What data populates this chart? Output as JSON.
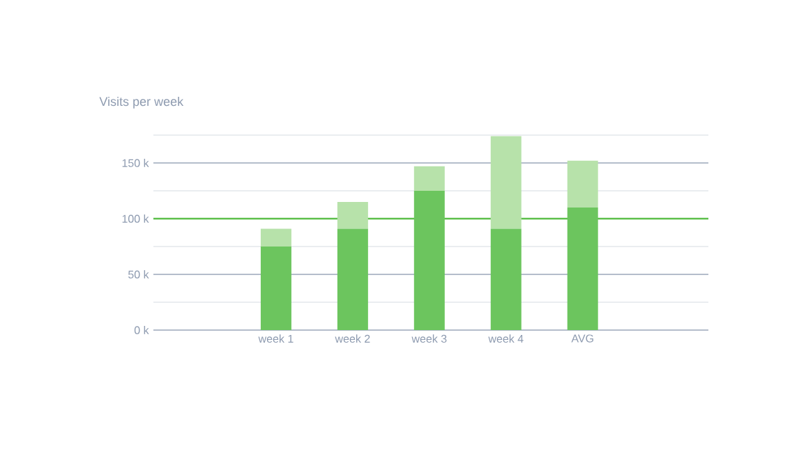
{
  "chart_data": {
    "type": "bar",
    "title": "Visits per week",
    "stacked": true,
    "categories": [
      "week 1",
      "week 2",
      "week 3",
      "week 4",
      "AVG"
    ],
    "series": [
      {
        "color": "#6cc55e",
        "values": [
          75,
          91,
          125,
          91,
          110
        ]
      },
      {
        "color": "#b7e2aa",
        "values": [
          16,
          24,
          22,
          83,
          42
        ]
      }
    ],
    "ylim": [
      0,
      175
    ],
    "yticks": [
      {
        "value": 0,
        "label": "0 k"
      },
      {
        "value": 25,
        "label": null
      },
      {
        "value": 50,
        "label": "50 k"
      },
      {
        "value": 75,
        "label": null
      },
      {
        "value": 100,
        "label": "100 k"
      },
      {
        "value": 125,
        "label": null
      },
      {
        "value": 150,
        "label": "150 k"
      },
      {
        "value": 175,
        "label": null
      }
    ],
    "grid": "y",
    "ref_lines": [
      {
        "axis": "y",
        "value": 100,
        "color": "#5cbf4a"
      }
    ]
  }
}
